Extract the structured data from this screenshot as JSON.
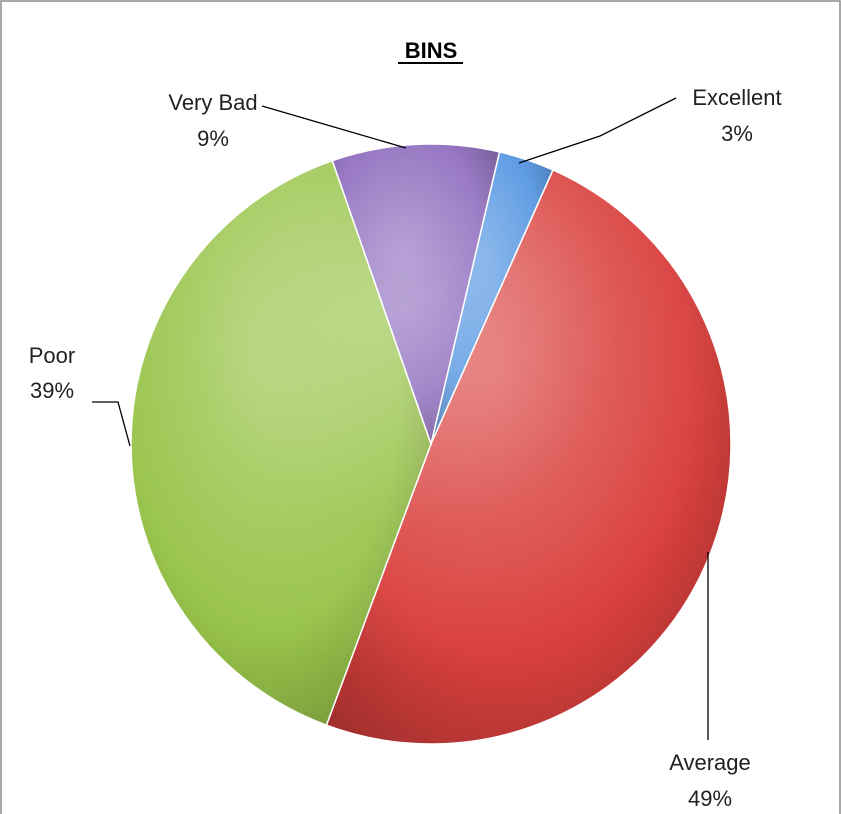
{
  "chart_data": {
    "type": "pie",
    "title": "BINS",
    "slices": [
      {
        "label": "Excellent",
        "value": 3,
        "display": "3%",
        "color": "#4a8fe0"
      },
      {
        "label": "Average",
        "value": 49,
        "display": "49%",
        "color": "#d9403d"
      },
      {
        "label": "Poor",
        "value": 39,
        "display": "39%",
        "color": "#98c44a"
      },
      {
        "label": "Very Bad",
        "value": 9,
        "display": "9%",
        "color": "#8560b8"
      }
    ],
    "legend": "none"
  }
}
